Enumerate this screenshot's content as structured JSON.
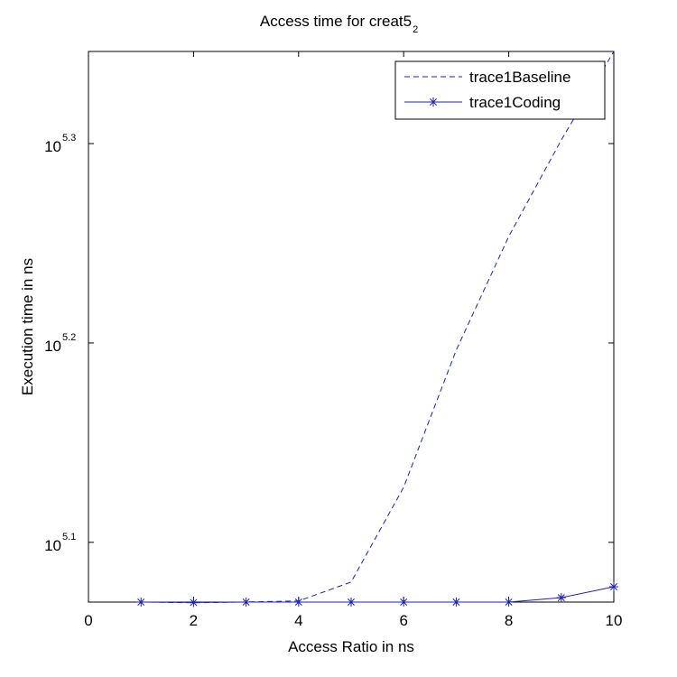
{
  "chart_data": {
    "type": "line",
    "title": {
      "text": "Access time for creat5",
      "subscript": "2"
    },
    "x_label": "Access Ratio in ns",
    "y_label": "Execution time in ns",
    "x": [
      1,
      2,
      3,
      4,
      5,
      6,
      7,
      8,
      9,
      10
    ],
    "series": [
      {
        "name": "trace1Baseline",
        "color": "#1f1fbf",
        "dash": "dashed",
        "marker": "none",
        "values": [
          117520,
          117400,
          117520,
          117650,
          120250,
          134170,
          157180,
          179220,
          200350,
          221930
        ]
      },
      {
        "name": "trace1Coding",
        "color": "#1f1fbf",
        "dash": "solid",
        "marker": "star",
        "values": [
          117500,
          117450,
          117500,
          117500,
          117500,
          117500,
          117500,
          117500,
          118100,
          119600
        ]
      }
    ],
    "xlim": [
      0,
      10
    ],
    "xticks": [
      0,
      2,
      4,
      6,
      8,
      10
    ],
    "ylim": [
      117500,
      221930
    ],
    "log_y": true,
    "yticks": [
      {
        "value": 125892.54,
        "label": "10",
        "exponent": "5.1"
      },
      {
        "value": 158489.32,
        "label": "10",
        "exponent": "5.2"
      },
      {
        "value": 199526.23,
        "label": "10",
        "exponent": "5.3"
      }
    ],
    "grid": false,
    "legend": "top-right"
  }
}
